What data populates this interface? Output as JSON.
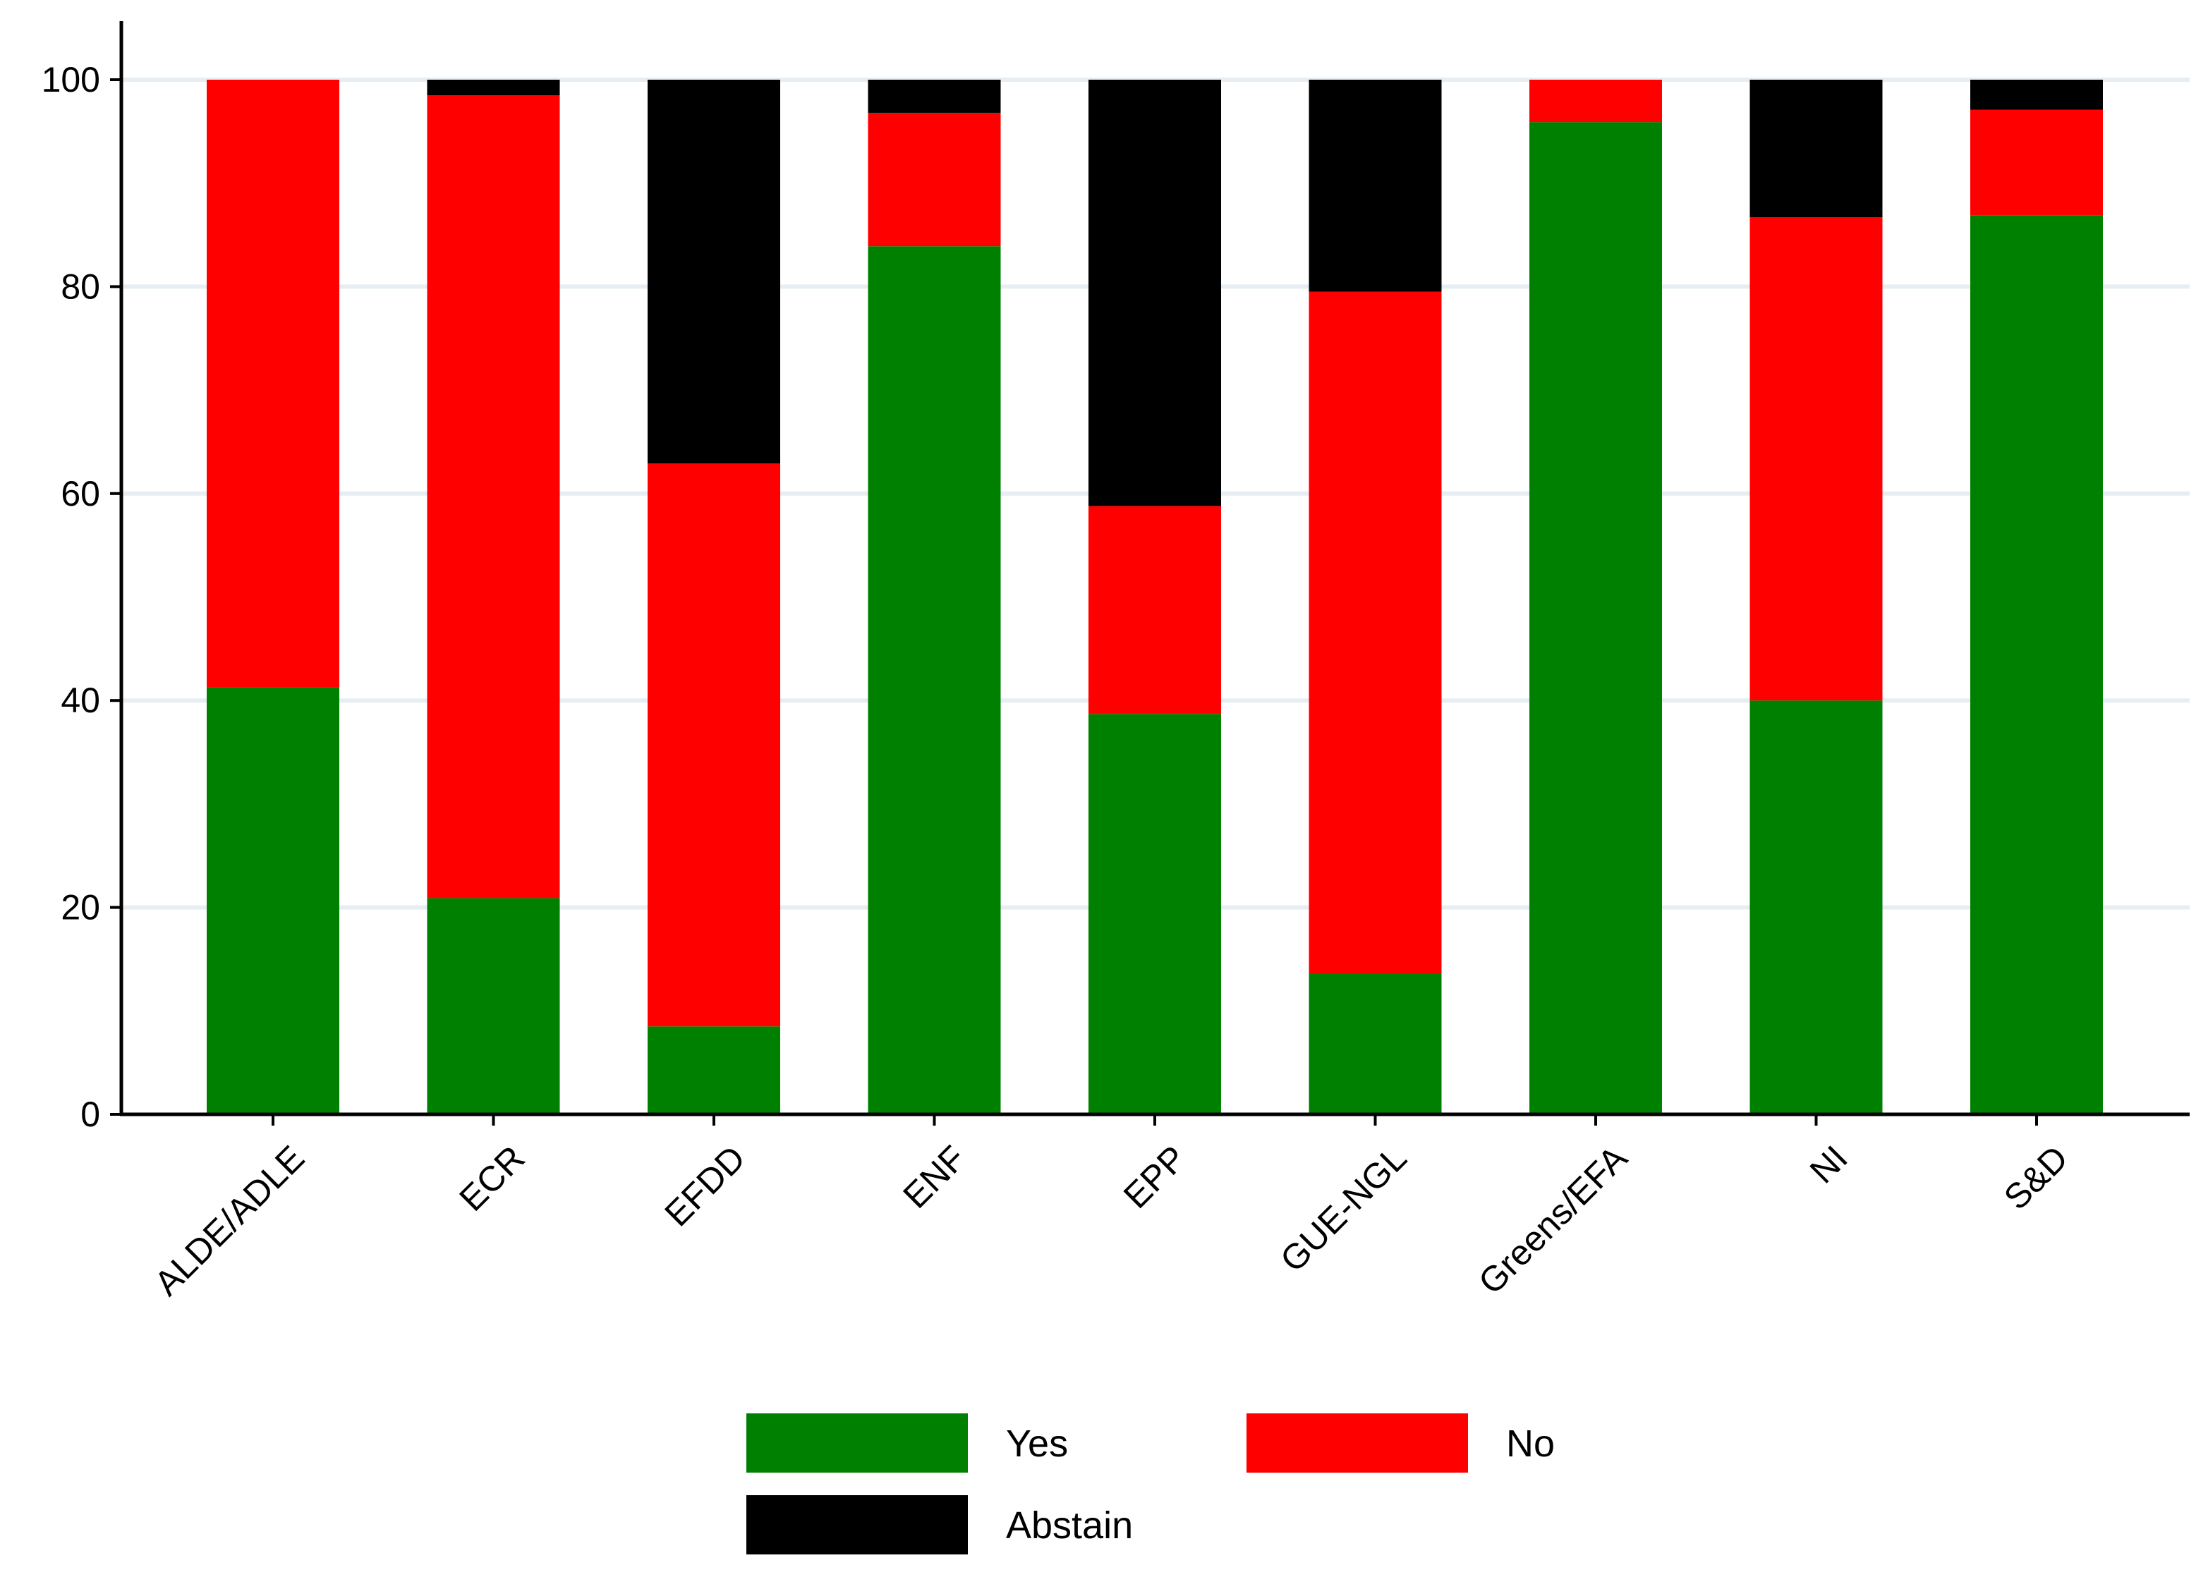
{
  "chart_data": {
    "type": "bar",
    "stacked": true,
    "title": "",
    "xlabel": "",
    "ylabel": "",
    "ylim": [
      0,
      100
    ],
    "yticks": [
      0,
      20,
      40,
      60,
      80,
      100
    ],
    "grid": true,
    "legend_position": "bottom",
    "categories": [
      "ALDE/ADLE",
      "ECR",
      "EFDD",
      "ENF",
      "EPP",
      "GUE-NGL",
      "Greens/EFA",
      "NI",
      "S&D"
    ],
    "series": [
      {
        "name": "Yes",
        "color": "#008000",
        "values": [
          41.3,
          20.9,
          8.5,
          83.9,
          38.7,
          13.6,
          95.9,
          40.0,
          86.9
        ]
      },
      {
        "name": "No",
        "color": "#ff0000",
        "values": [
          58.7,
          77.6,
          54.4,
          12.9,
          20.1,
          65.9,
          4.1,
          46.7,
          10.2
        ]
      },
      {
        "name": "Abstain",
        "color": "#000000",
        "values": [
          0.0,
          1.5,
          37.1,
          3.2,
          41.2,
          20.5,
          0.0,
          13.3,
          2.9
        ]
      }
    ]
  }
}
